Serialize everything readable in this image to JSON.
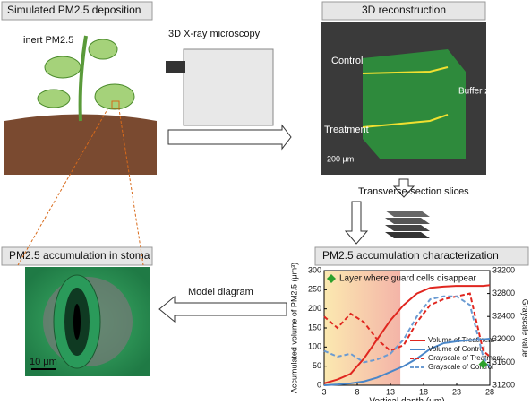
{
  "panels": {
    "deposition": {
      "title": "Simulated PM2.5 deposition",
      "particles_label": "inert PM2.5",
      "instrument_label": "3D X-ray microscopy"
    },
    "reconstruction": {
      "title": "3D reconstruction",
      "control_label": "Control",
      "buffer_label": "Buffer zone",
      "treatment_label": "Treatment",
      "scale_label": "200 μm"
    },
    "slices": {
      "label": "Transverse-section slices"
    },
    "stoma": {
      "title": "PM2.5 accumulation in stoma",
      "scale_label": "10 μm"
    },
    "model": {
      "label": "Model diagram"
    },
    "characterization": {
      "title": "PM2.5 accumulation characterization"
    }
  },
  "chart": {
    "type": "line",
    "annotation": "Layer where guard cells disappear",
    "annotation_point": {
      "x": 27,
      "y": 55
    },
    "shaded_range": [
      3,
      14.5
    ],
    "xlabel": "Vertical depth (μm)",
    "ylabel": "Accumulated volume of PM2.5 (μm³)",
    "y2label": "Grayscale value",
    "x": [
      3,
      5,
      7,
      9,
      11,
      13,
      15,
      17,
      19,
      21,
      23,
      25,
      27,
      28
    ],
    "xlim": [
      3,
      28
    ],
    "xticks": [
      3,
      8,
      13,
      18,
      23,
      28
    ],
    "ylim": [
      0,
      300
    ],
    "yticks": [
      0,
      50,
      100,
      150,
      200,
      250,
      300
    ],
    "y2lim": [
      31200,
      33200
    ],
    "y2ticks": [
      31200,
      31600,
      32000,
      32400,
      32800,
      33200
    ],
    "series": [
      {
        "name": "Volume of Treatment",
        "color": "#e0261f",
        "dash": false,
        "values": [
          5,
          15,
          30,
          70,
          120,
          170,
          210,
          240,
          255,
          258,
          260,
          260,
          260,
          262
        ]
      },
      {
        "name": "Volume of Control",
        "color": "#4a86c8",
        "dash": false,
        "values": [
          0,
          2,
          5,
          10,
          20,
          35,
          50,
          70,
          95,
          110,
          115,
          118,
          120,
          122
        ]
      },
      {
        "name": "Grayscale of Treatment",
        "color": "#e0261f",
        "dash": true,
        "axis": "y2",
        "values": [
          32400,
          32200,
          32450,
          32300,
          32000,
          31800,
          31900,
          32300,
          32600,
          32700,
          32750,
          32800,
          31800,
          31700
        ]
      },
      {
        "name": "Grayscale of Control",
        "color": "#6b9bd2",
        "dash": true,
        "axis": "y2",
        "values": [
          31800,
          31700,
          31750,
          31600,
          31650,
          31750,
          32000,
          32400,
          32700,
          32750,
          32750,
          32600,
          31700,
          31500
        ]
      }
    ]
  }
}
